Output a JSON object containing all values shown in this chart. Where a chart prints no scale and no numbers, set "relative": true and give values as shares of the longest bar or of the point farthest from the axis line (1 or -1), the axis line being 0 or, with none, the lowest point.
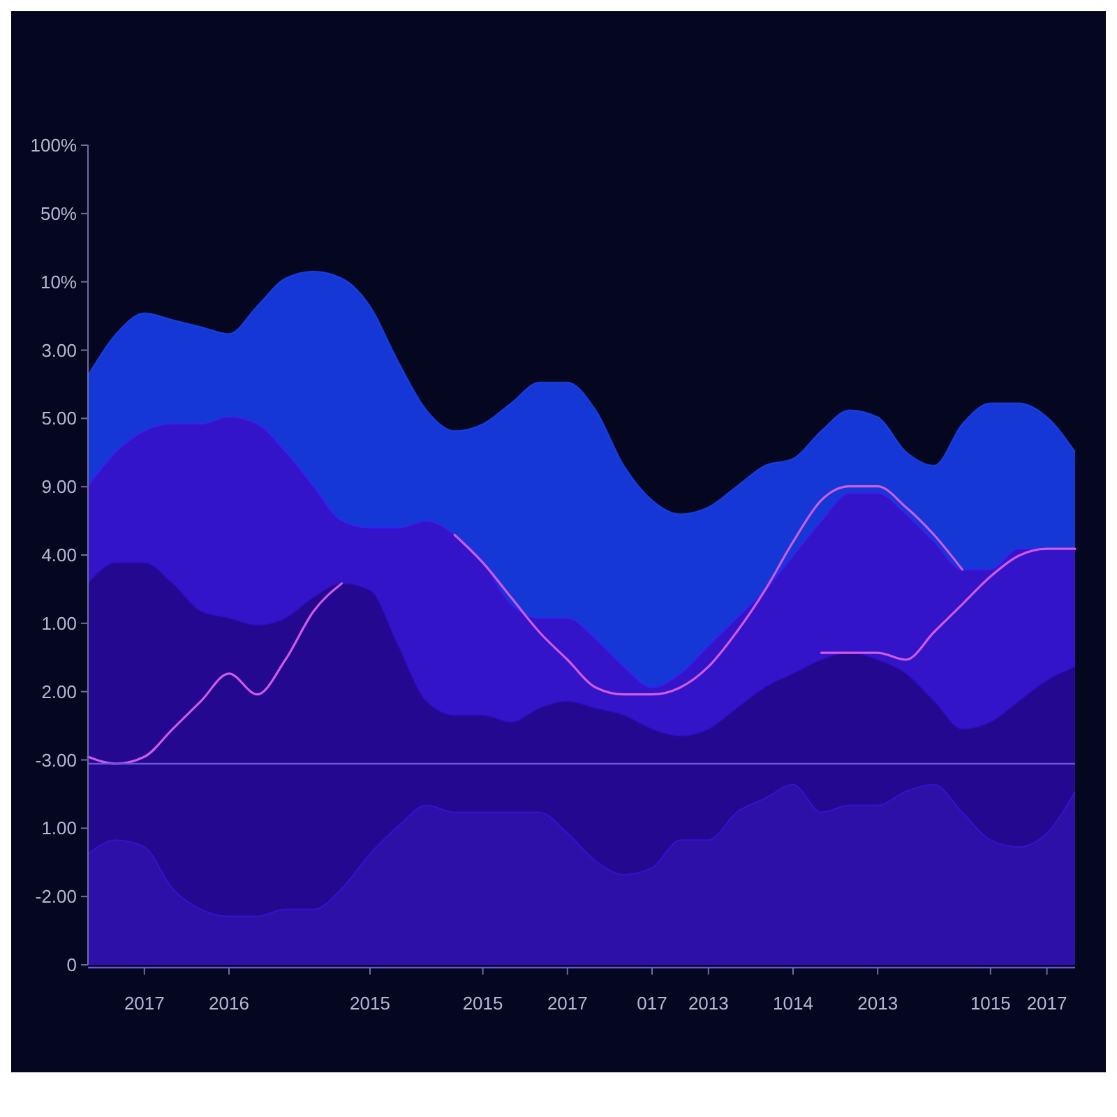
{
  "chart_data": {
    "type": "area",
    "relative": true,
    "categories": [
      null,
      null,
      "2017",
      null,
      null,
      "2016",
      null,
      null,
      null,
      null,
      "2015",
      null,
      null,
      null,
      "2015",
      null,
      null,
      "2017",
      null,
      null,
      "017",
      null,
      "2013",
      null,
      null,
      "1014",
      null,
      null,
      "2013",
      null,
      null,
      null,
      "1015",
      null,
      "2017",
      null
    ],
    "annotations": [
      "100%",
      "50%",
      "10%",
      "3.00",
      "5.00",
      "9.00",
      "4.00",
      "1.00",
      "2.00",
      "-3.00",
      "1.00",
      "-2.00",
      "0"
    ],
    "ref_lines": [
      {
        "axis": "y",
        "value": 0.29,
        "color": "#6a55e0"
      }
    ],
    "series": [
      {
        "color": "#1537d6",
        "values": [
          0.85,
          0.91,
          0.94,
          0.93,
          0.92,
          0.91,
          0.95,
          0.99,
          1.0,
          0.99,
          0.95,
          0.87,
          0.8,
          0.77,
          0.78,
          0.81,
          0.84,
          0.84,
          0.8,
          0.72,
          0.67,
          0.65,
          0.66,
          0.69,
          0.72,
          0.73,
          0.77,
          0.8,
          0.79,
          0.74,
          0.72,
          0.78,
          0.81,
          0.81,
          0.79,
          0.74
        ]
      },
      {
        "color": "#3414c8",
        "values": [
          0.69,
          0.74,
          0.77,
          0.78,
          0.78,
          0.79,
          0.78,
          0.74,
          0.69,
          0.64,
          0.63,
          0.63,
          0.64,
          0.62,
          0.58,
          0.52,
          0.5,
          0.5,
          0.47,
          0.43,
          0.4,
          0.42,
          0.46,
          0.5,
          0.54,
          0.59,
          0.64,
          0.68,
          0.68,
          0.65,
          0.61,
          0.57,
          0.57,
          0.6,
          0.6,
          0.6
        ]
      },
      {
        "color": "#24088f",
        "values": [
          0.55,
          0.58,
          0.58,
          0.55,
          0.51,
          0.5,
          0.49,
          0.5,
          0.53,
          0.55,
          0.54,
          0.46,
          0.38,
          0.36,
          0.36,
          0.35,
          0.37,
          0.38,
          0.37,
          0.36,
          0.34,
          0.33,
          0.34,
          0.37,
          0.4,
          0.42,
          0.44,
          0.45,
          0.44,
          0.42,
          0.38,
          0.34,
          0.35,
          0.38,
          0.41,
          0.43
        ]
      },
      {
        "color": "#2d10a8",
        "values": [
          0.16,
          0.18,
          0.17,
          0.11,
          0.08,
          0.07,
          0.07,
          0.08,
          0.08,
          0.11,
          0.16,
          0.2,
          0.23,
          0.22,
          0.22,
          0.22,
          0.22,
          0.19,
          0.15,
          0.13,
          0.14,
          0.18,
          0.18,
          0.22,
          0.24,
          0.26,
          0.22,
          0.23,
          0.23,
          0.25,
          0.26,
          0.22,
          0.18,
          0.17,
          0.19,
          0.25
        ]
      },
      {
        "type": "line",
        "color": "#d05ae8",
        "values": [
          0.3,
          0.29,
          0.3,
          0.34,
          0.38,
          0.42,
          0.39,
          0.44,
          0.51,
          0.55,
          null,
          null,
          null,
          0.62,
          0.58,
          0.53,
          0.48,
          0.44,
          0.4,
          0.39,
          0.39,
          0.4,
          0.43,
          0.48,
          0.54,
          0.61,
          0.67,
          0.69,
          0.69,
          0.66,
          0.62,
          0.57,
          null,
          null,
          null,
          null
        ]
      },
      {
        "type": "line",
        "color": "#d05ae8",
        "values": [
          null,
          null,
          null,
          null,
          null,
          null,
          null,
          null,
          null,
          null,
          null,
          null,
          null,
          null,
          null,
          null,
          null,
          null,
          null,
          null,
          null,
          null,
          null,
          null,
          null,
          null,
          0.45,
          0.45,
          0.45,
          0.44,
          0.48,
          0.52,
          0.56,
          0.59,
          0.6,
          0.6
        ]
      }
    ]
  }
}
